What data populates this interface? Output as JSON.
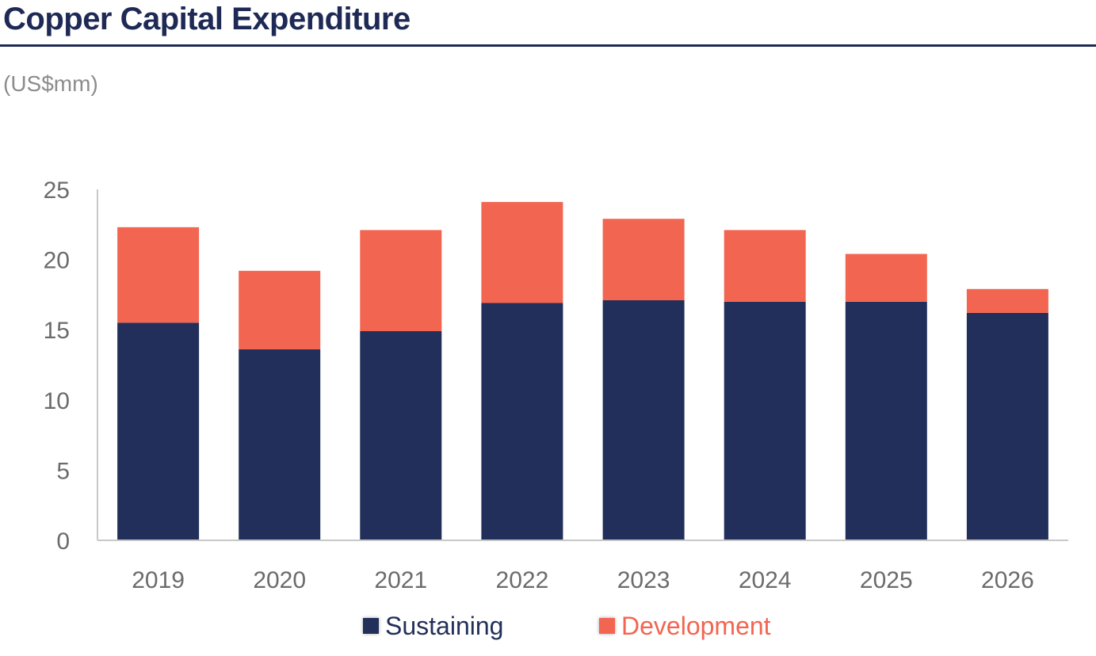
{
  "header": {
    "title": "Copper Capital Expenditure",
    "unit": "(US$mm)"
  },
  "colors": {
    "sustaining": "#222f5a",
    "development": "#f26550",
    "axis": "#c8c8c8",
    "title": "#1e2a55"
  },
  "chart_data": {
    "type": "bar",
    "stacked": true,
    "categories": [
      "2019",
      "2020",
      "2021",
      "2022",
      "2023",
      "2024",
      "2025",
      "2026"
    ],
    "series": [
      {
        "name": "Sustaining",
        "values": [
          15.5,
          13.6,
          14.9,
          16.9,
          17.1,
          17.0,
          17.0,
          16.2
        ]
      },
      {
        "name": "Development",
        "values": [
          6.8,
          5.6,
          7.2,
          7.2,
          5.8,
          5.1,
          3.4,
          1.7
        ]
      }
    ],
    "title": "Copper Capital Expenditure",
    "ylabel": "(US$mm)",
    "xlabel": "",
    "ylim": [
      0,
      25
    ],
    "yticks": [
      0,
      5,
      10,
      15,
      20,
      25
    ],
    "grid": false,
    "legend": "bottom"
  }
}
